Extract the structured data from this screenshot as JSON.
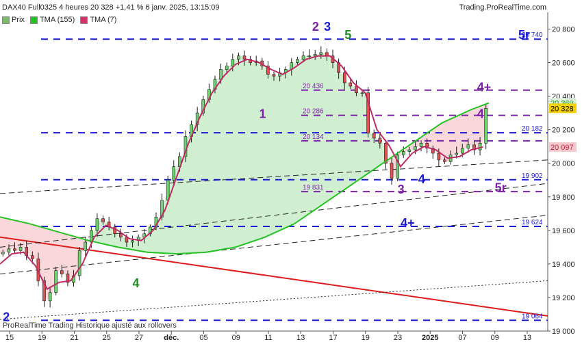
{
  "header": {
    "title": "DAX40 Full0325 4 heures 20 328 +1,41 % 6 janv. 2025, 13:15:09",
    "source": "Trading.ProRealTime.com"
  },
  "legend": [
    {
      "label": "Prix",
      "color": "#7dba6e"
    },
    {
      "label": "TMA (155)",
      "color": "#22c322"
    },
    {
      "label": "TMA (7)",
      "color": "#d6336c"
    }
  ],
  "footer": "ProRealTime Trading  Historique ajusté aux rollovers",
  "chart_data": {
    "type": "line",
    "title": "DAX40 Full0325 4 heures",
    "ylim": [
      19000,
      20900
    ],
    "y_ticks": [
      "20 800",
      "20 600",
      "20 400",
      "20 200",
      "20 000",
      "19 800",
      "19 600",
      "19 400",
      "19 200",
      "19 000"
    ],
    "x_ticks": [
      "15",
      "19",
      "21",
      "25",
      "27",
      "déc.",
      "05",
      "09",
      "11",
      "13",
      "17",
      "19",
      "23",
      "2025",
      "07",
      "09",
      "13"
    ],
    "price_tags": [
      {
        "label": "20 360",
        "value": 20360,
        "bg": "#d9f2d9",
        "fg": "#1d8f1d"
      },
      {
        "label": "20 328",
        "value": 20328,
        "bg": "#f7d100",
        "fg": "#000000"
      },
      {
        "label": "20 097",
        "value": 20097,
        "bg": "#f6c9cf",
        "fg": "#c1223a"
      }
    ],
    "levels": [
      {
        "value": 20740,
        "label": "20 740",
        "color": "#1a1ad6",
        "style": "long"
      },
      {
        "value": 20436,
        "label": "20 436",
        "color": "#7b22a8",
        "style": "med"
      },
      {
        "value": 20286,
        "label": "20 286",
        "color": "#7b22a8",
        "style": "med"
      },
      {
        "value": 20182,
        "label": "20 182",
        "color": "#1a1ad6",
        "style": "long"
      },
      {
        "value": 20134,
        "label": "20 134",
        "color": "#7b22a8",
        "style": "med"
      },
      {
        "value": 19902,
        "label": "19 902",
        "color": "#1a1ad6",
        "style": "long"
      },
      {
        "value": 19831,
        "label": "19 831",
        "color": "#7b22a8",
        "style": "med"
      },
      {
        "value": 19624,
        "label": "19 624",
        "color": "#1a1ad6",
        "style": "long"
      },
      {
        "value": 19064,
        "label": "19 064",
        "color": "#1a1ad6",
        "style": "long"
      }
    ],
    "wave_labels": [
      {
        "text": "2",
        "x": 1,
        "y": 19060,
        "color": "#1a1ad6"
      },
      {
        "text": "4",
        "x": 45,
        "y": 19260,
        "color": "#1e8c1e"
      },
      {
        "text": "1",
        "x": 88,
        "y": 20270,
        "color": "#7b22a8"
      },
      {
        "text": "2",
        "x": 106,
        "y": 20790,
        "color": "#7b22a8"
      },
      {
        "text": "3",
        "x": 110,
        "y": 20790,
        "color": "#1a1ad6"
      },
      {
        "text": "5",
        "x": 117,
        "y": 20740,
        "color": "#1e8c1e"
      },
      {
        "text": "3",
        "x": 135,
        "y": 19820,
        "color": "#7b22a8"
      },
      {
        "text": "4",
        "x": 142,
        "y": 19880,
        "color": "#1a1ad6"
      },
      {
        "text": "4",
        "x": 162,
        "y": 20270,
        "color": "#7b22a8"
      },
      {
        "text": "4+",
        "x": 162,
        "y": 20430,
        "color": "#7b22a8"
      },
      {
        "text": "5r",
        "x": 176,
        "y": 20740,
        "color": "#1a1ad6"
      },
      {
        "text": "5r",
        "x": 168,
        "y": 19830,
        "color": "#7b22a8"
      },
      {
        "text": "4+",
        "x": 136,
        "y": 19620,
        "color": "#1a1ad6"
      }
    ],
    "price_series": [
      [
        0,
        19460
      ],
      [
        2,
        19470
      ],
      [
        4,
        19490
      ],
      [
        6,
        19480
      ],
      [
        8,
        19500
      ],
      [
        10,
        19450
      ],
      [
        12,
        19430
      ],
      [
        14,
        19300
      ],
      [
        16,
        19180
      ],
      [
        18,
        19230
      ],
      [
        20,
        19360
      ],
      [
        22,
        19340
      ],
      [
        24,
        19290
      ],
      [
        26,
        19330
      ],
      [
        28,
        19480
      ],
      [
        30,
        19530
      ],
      [
        32,
        19600
      ],
      [
        34,
        19670
      ],
      [
        36,
        19650
      ],
      [
        38,
        19620
      ],
      [
        40,
        19580
      ],
      [
        42,
        19560
      ],
      [
        44,
        19530
      ],
      [
        46,
        19540
      ],
      [
        48,
        19560
      ],
      [
        50,
        19580
      ],
      [
        52,
        19620
      ],
      [
        54,
        19680
      ],
      [
        56,
        19780
      ],
      [
        58,
        19900
      ],
      [
        60,
        19980
      ],
      [
        62,
        20040
      ],
      [
        64,
        20160
      ],
      [
        66,
        20230
      ],
      [
        68,
        20300
      ],
      [
        70,
        20380
      ],
      [
        72,
        20440
      ],
      [
        74,
        20500
      ],
      [
        76,
        20560
      ],
      [
        78,
        20580
      ],
      [
        80,
        20620
      ],
      [
        82,
        20640
      ],
      [
        84,
        20620
      ],
      [
        86,
        20600
      ],
      [
        88,
        20610
      ],
      [
        90,
        20580
      ],
      [
        92,
        20530
      ],
      [
        94,
        20520
      ],
      [
        96,
        20540
      ],
      [
        98,
        20560
      ],
      [
        100,
        20600
      ],
      [
        102,
        20620
      ],
      [
        104,
        20640
      ],
      [
        106,
        20640
      ],
      [
        108,
        20650
      ],
      [
        110,
        20660
      ],
      [
        112,
        20640
      ],
      [
        114,
        20600
      ],
      [
        116,
        20540
      ],
      [
        118,
        20480
      ],
      [
        120,
        20460
      ],
      [
        122,
        20420
      ],
      [
        124,
        20420
      ],
      [
        126,
        20180
      ],
      [
        128,
        20150
      ],
      [
        130,
        20120
      ],
      [
        132,
        20000
      ],
      [
        134,
        19910
      ],
      [
        136,
        20050
      ],
      [
        138,
        20070
      ],
      [
        140,
        20080
      ],
      [
        142,
        20100
      ],
      [
        144,
        20120
      ],
      [
        146,
        20090
      ],
      [
        148,
        20060
      ],
      [
        150,
        20020
      ],
      [
        152,
        20010
      ],
      [
        154,
        20050
      ],
      [
        156,
        20060
      ],
      [
        158,
        20090
      ],
      [
        160,
        20110
      ],
      [
        162,
        20080
      ],
      [
        164,
        20120
      ],
      [
        166,
        20328
      ]
    ],
    "tma7": [
      [
        0,
        19400
      ],
      [
        4,
        19460
      ],
      [
        8,
        19470
      ],
      [
        12,
        19390
      ],
      [
        16,
        19250
      ],
      [
        20,
        19290
      ],
      [
        24,
        19300
      ],
      [
        28,
        19400
      ],
      [
        32,
        19560
      ],
      [
        36,
        19630
      ],
      [
        40,
        19600
      ],
      [
        44,
        19550
      ],
      [
        48,
        19540
      ],
      [
        52,
        19600
      ],
      [
        56,
        19720
      ],
      [
        60,
        19920
      ],
      [
        64,
        20120
      ],
      [
        68,
        20280
      ],
      [
        72,
        20420
      ],
      [
        76,
        20520
      ],
      [
        80,
        20590
      ],
      [
        84,
        20620
      ],
      [
        88,
        20600
      ],
      [
        92,
        20560
      ],
      [
        96,
        20530
      ],
      [
        100,
        20570
      ],
      [
        104,
        20620
      ],
      [
        108,
        20640
      ],
      [
        112,
        20640
      ],
      [
        116,
        20580
      ],
      [
        120,
        20480
      ],
      [
        124,
        20420
      ],
      [
        128,
        20200
      ],
      [
        132,
        20110
      ],
      [
        136,
        19980
      ],
      [
        140,
        20060
      ],
      [
        144,
        20100
      ],
      [
        148,
        20080
      ],
      [
        152,
        20030
      ],
      [
        156,
        20040
      ],
      [
        160,
        20080
      ],
      [
        164,
        20097
      ]
    ],
    "tma155": [
      [
        0,
        19680
      ],
      [
        10,
        19640
      ],
      [
        20,
        19590
      ],
      [
        30,
        19540
      ],
      [
        40,
        19500
      ],
      [
        50,
        19470
      ],
      [
        60,
        19460
      ],
      [
        70,
        19470
      ],
      [
        80,
        19500
      ],
      [
        90,
        19560
      ],
      [
        100,
        19640
      ],
      [
        110,
        19760
      ],
      [
        120,
        19880
      ],
      [
        130,
        20000
      ],
      [
        140,
        20120
      ],
      [
        150,
        20240
      ],
      [
        160,
        20320
      ],
      [
        166,
        20360
      ]
    ],
    "trendlines": [
      {
        "from": [
          0,
          19560
        ],
        "to": [
          186,
          19090
        ],
        "color": "#e01b1b",
        "style": "solid"
      },
      {
        "from": [
          0,
          19820
        ],
        "to": [
          186,
          20020
        ],
        "color": "#222",
        "style": "dashed"
      },
      {
        "from": [
          0,
          19500
        ],
        "to": [
          186,
          19880
        ],
        "color": "#222",
        "style": "dashed"
      },
      {
        "from": [
          0,
          19340
        ],
        "to": [
          186,
          19690
        ],
        "color": "#222",
        "style": "dashed"
      },
      {
        "from": [
          0,
          19070
        ],
        "to": [
          186,
          19300
        ],
        "color": "#222",
        "style": "dotted"
      }
    ]
  }
}
